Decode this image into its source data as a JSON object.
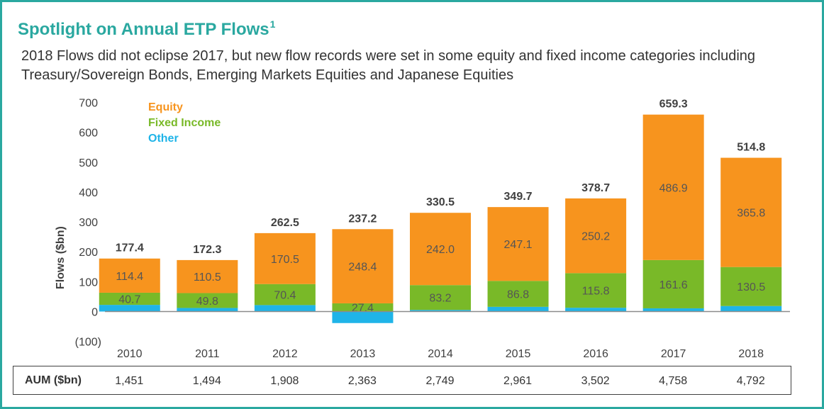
{
  "header": {
    "title": "Spotlight on Annual ETP Flows",
    "title_footnote": "1",
    "subtitle": "2018 Flows did not eclipse 2017, but new flow records were set in some equity and fixed income categories including Treasury/Sovereign Bonds, Emerging Markets Equities and Japanese Equities"
  },
  "chart_data": {
    "type": "bar",
    "stacked": true,
    "ylabel": "Flows ($bn)",
    "xlabel": "",
    "ylim": [
      -100,
      700
    ],
    "ytick_values": [
      -100,
      0,
      100,
      200,
      300,
      400,
      500,
      600,
      700
    ],
    "ytick_labels": [
      "(100)",
      "0",
      "100",
      "200",
      "300",
      "400",
      "500",
      "600",
      "700"
    ],
    "categories": [
      "2010",
      "2011",
      "2012",
      "2013",
      "2014",
      "2015",
      "2016",
      "2017",
      "2018"
    ],
    "legend_position": "top-left",
    "series": [
      {
        "name": "Other",
        "color": "#1fb4e8",
        "values": [
          22.3,
          12.0,
          21.6,
          -38.6,
          5.3,
          15.8,
          12.7,
          10.8,
          18.5
        ]
      },
      {
        "name": "Fixed Income",
        "color": "#79b928",
        "values": [
          40.7,
          49.8,
          70.4,
          27.4,
          83.2,
          86.8,
          115.8,
          161.6,
          130.5
        ]
      },
      {
        "name": "Equity",
        "color": "#f7941e",
        "values": [
          114.4,
          110.5,
          170.5,
          248.4,
          242.0,
          247.1,
          250.2,
          486.9,
          365.8
        ]
      }
    ],
    "series_labels": {
      "Fixed Income": [
        "40.7",
        "49.8",
        "70.4",
        "27.4",
        "83.2",
        "86.8",
        "115.8",
        "161.6",
        "130.5"
      ],
      "Equity": [
        "114.4",
        "110.5",
        "170.5",
        "248.4",
        "242.0",
        "247.1",
        "250.2",
        "486.9",
        "365.8"
      ]
    },
    "totals": [
      177.4,
      172.3,
      262.5,
      237.2,
      330.5,
      349.7,
      378.7,
      659.3,
      514.8
    ],
    "total_labels": [
      "177.4",
      "172.3",
      "262.5",
      "237.2",
      "330.5",
      "349.7",
      "378.7",
      "659.3",
      "514.8"
    ]
  },
  "aum": {
    "label": "AUM ($bn)",
    "values": [
      "1,451",
      "1,494",
      "1,908",
      "2,363",
      "2,749",
      "2,961",
      "3,502",
      "4,758",
      "4,792"
    ]
  }
}
